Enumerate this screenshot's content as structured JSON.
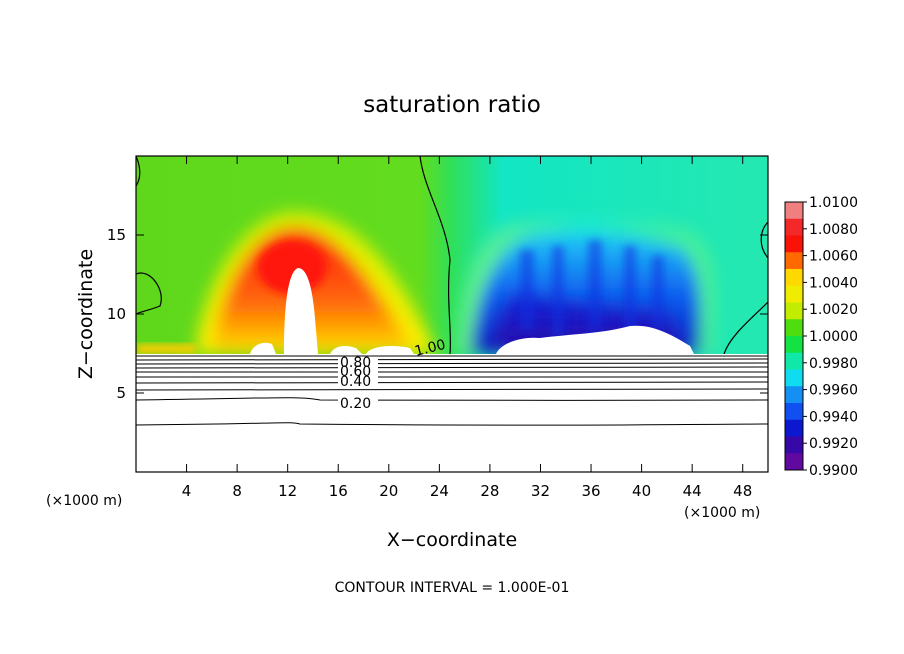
{
  "chart_data": {
    "type": "heatmap",
    "title": "saturation ratio",
    "xlabel": "X−coordinate",
    "ylabel": "Z−coordinate",
    "x_unit_left": "(×1000 m)",
    "x_unit_right": "(×1000 m)",
    "xlim": [
      0,
      50
    ],
    "ylim": [
      0,
      20
    ],
    "x_ticks": [
      4,
      8,
      12,
      16,
      20,
      24,
      28,
      32,
      36,
      40,
      44,
      48
    ],
    "y_ticks": [
      5,
      10,
      15
    ],
    "colorbar": {
      "min": 0.99,
      "max": 1.01,
      "labels": [
        "1.0100",
        "1.0080",
        "1.0060",
        "1.0040",
        "1.0020",
        "1.0000",
        "0.9980",
        "0.9960",
        "0.9940",
        "0.9920",
        "0.9900"
      ]
    },
    "contour_labels": [
      {
        "text": "1.00",
        "x": 23.5,
        "z": 8.0
      },
      {
        "text": "0.80",
        "x": 17.5,
        "z": 7.2
      },
      {
        "text": "0.60",
        "x": 17.5,
        "z": 6.6
      },
      {
        "text": "0.40",
        "x": 17.5,
        "z": 5.9
      },
      {
        "text": "0.20",
        "x": 17.5,
        "z": 4.5
      }
    ],
    "footer": "CONTOUR INTERVAL = 1.000E-01"
  }
}
